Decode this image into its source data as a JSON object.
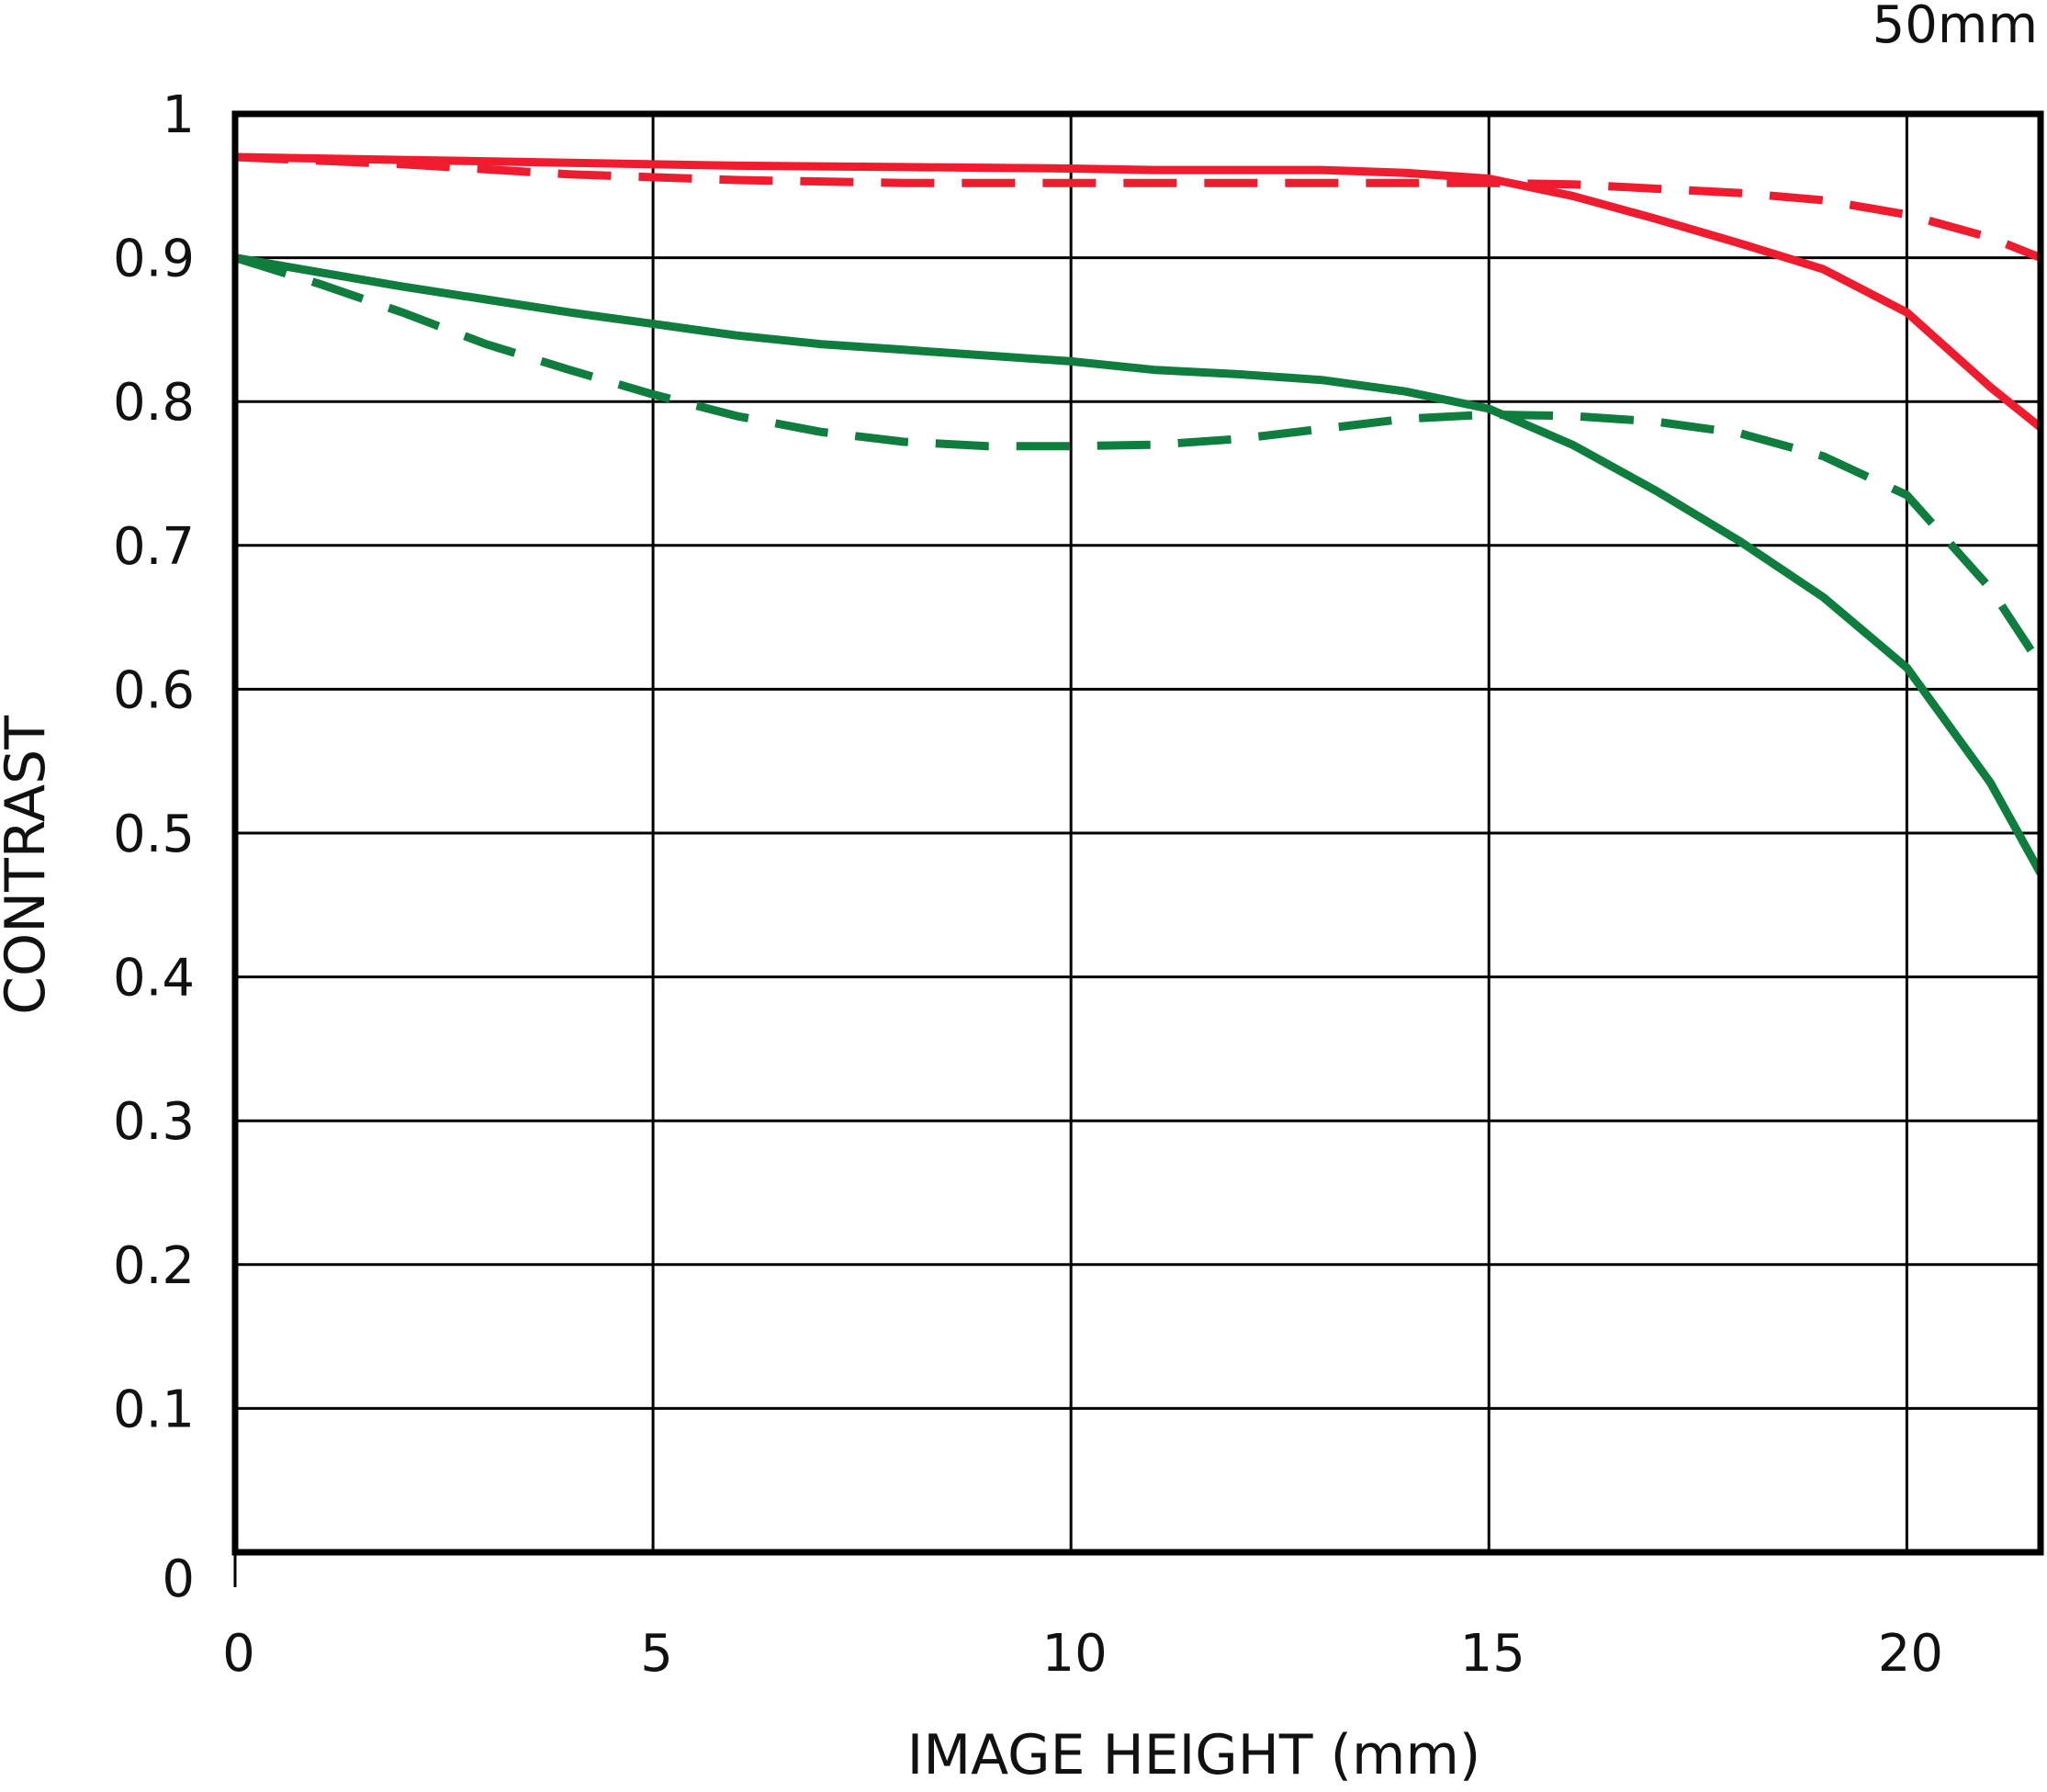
{
  "chart_data": {
    "type": "line",
    "title": "",
    "corner_label": "50mm",
    "xlabel": "IMAGE HEIGHT (mm)",
    "ylabel": "CONTRAST",
    "xlim": [
      0,
      21.6
    ],
    "ylim": [
      0,
      1
    ],
    "x_ticks": [
      0,
      5,
      10,
      15,
      20
    ],
    "x_tick_labels": [
      "0",
      "5",
      "10",
      "15",
      "20"
    ],
    "y_ticks": [
      0,
      0.1,
      0.2,
      0.3,
      0.4,
      0.5,
      0.6,
      0.7,
      0.8,
      0.9,
      1
    ],
    "y_tick_labels": [
      "0",
      "0.1",
      "0.2",
      "0.3",
      "0.4",
      "0.5",
      "0.6",
      "0.7",
      "0.8",
      "0.9",
      "1"
    ],
    "grid": true,
    "legend": "none",
    "series": [
      {
        "color": "#ee1c2e",
        "dash": "solid",
        "x": [
          0,
          2,
          4,
          6,
          8,
          10,
          11,
          12,
          13,
          14,
          15,
          16,
          17,
          18,
          19,
          20,
          21,
          21.6
        ],
        "y": [
          0.97,
          0.968,
          0.966,
          0.964,
          0.963,
          0.962,
          0.961,
          0.961,
          0.961,
          0.959,
          0.955,
          0.943,
          0.927,
          0.91,
          0.892,
          0.862,
          0.81,
          0.782
        ]
      },
      {
        "color": "#ee1c2e",
        "dash": "dashed",
        "x": [
          0,
          2,
          4,
          6,
          8,
          10,
          12,
          14,
          15,
          16,
          18,
          19,
          20,
          21,
          21.6
        ],
        "y": [
          0.97,
          0.965,
          0.958,
          0.954,
          0.952,
          0.952,
          0.952,
          0.952,
          0.952,
          0.951,
          0.945,
          0.94,
          0.93,
          0.914,
          0.9
        ]
      },
      {
        "color": "#0e7d3d",
        "dash": "solid",
        "x": [
          0,
          1,
          2,
          3,
          4,
          5,
          6,
          7,
          8,
          9,
          10,
          11,
          12,
          13,
          14,
          15,
          16,
          17,
          18,
          19,
          20,
          21,
          21.6
        ],
        "y": [
          0.9,
          0.89,
          0.88,
          0.871,
          0.862,
          0.854,
          0.846,
          0.84,
          0.836,
          0.832,
          0.828,
          0.822,
          0.819,
          0.815,
          0.807,
          0.795,
          0.77,
          0.738,
          0.703,
          0.664,
          0.615,
          0.535,
          0.472
        ]
      },
      {
        "color": "#0e7d3d",
        "dash": "dashed",
        "x": [
          0,
          1,
          2,
          3,
          4,
          5,
          6,
          7,
          8,
          9,
          10,
          11,
          12,
          13,
          14,
          15,
          16,
          17,
          18,
          19,
          20,
          21,
          21.6
        ],
        "y": [
          0.9,
          0.882,
          0.862,
          0.84,
          0.822,
          0.805,
          0.79,
          0.779,
          0.772,
          0.769,
          0.769,
          0.77,
          0.774,
          0.781,
          0.788,
          0.791,
          0.79,
          0.786,
          0.778,
          0.762,
          0.735,
          0.67,
          0.617
        ]
      }
    ]
  }
}
